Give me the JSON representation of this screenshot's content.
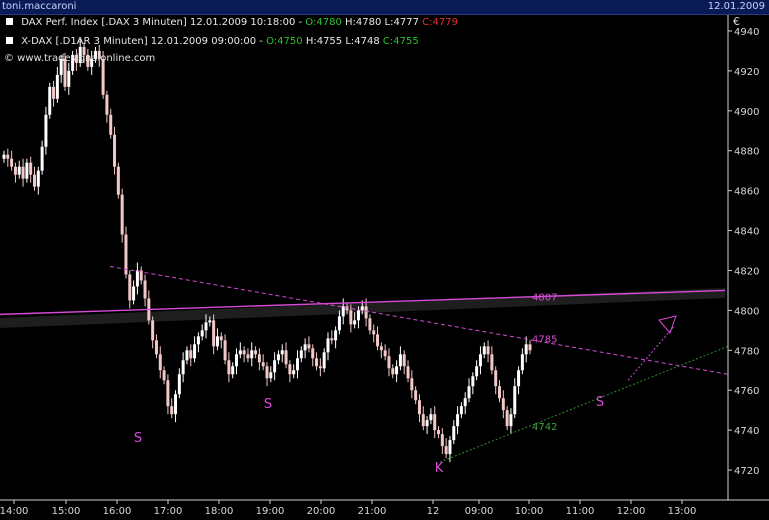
{
  "window": {
    "user": "toni.maccaroni",
    "date": "12.01.2009"
  },
  "legend": [
    {
      "name": "DAX Perf. Index [.DAX  3 Minuten] 12.01.2009 10:18:00 -",
      "open_label": "O:",
      "open": "4780",
      "high": "H:4780",
      "low": "L:4777",
      "close_label": "C:",
      "close": "4779",
      "close_color": "#e53030"
    },
    {
      "name": "X-DAX [.D1AR  3 Minuten] 12.01.2009 09:00:00 -",
      "open_label": "O:",
      "open": "4750",
      "high": "H:4755",
      "low": "L:4748",
      "close_label": "C:",
      "close": "4755",
      "close_color": "#2ec22e"
    }
  ],
  "copyright": "© www.tradesignalonline.com",
  "chart_data": {
    "type": "candlestick",
    "currency": "€",
    "ylim": [
      4705,
      4948
    ],
    "yticks": [
      4940,
      4920,
      4900,
      4880,
      4860,
      4840,
      4820,
      4800,
      4780,
      4760,
      4740,
      4720
    ],
    "xticks": [
      "14:00",
      "15:00",
      "16:00",
      "17:00",
      "18:00",
      "19:00",
      "20:00",
      "21:00",
      "12",
      "09:00",
      "10:00",
      "11:00",
      "12:00",
      "13:00"
    ],
    "closes": [
      4878,
      4876,
      4872,
      4868,
      4872,
      4866,
      4874,
      4868,
      4862,
      4870,
      4882,
      4898,
      4912,
      4906,
      4918,
      4926,
      4912,
      4920,
      4928,
      4924,
      4932,
      4928,
      4922,
      4926,
      4930,
      4926,
      4908,
      4898,
      4888,
      4872,
      4858,
      4838,
      4818,
      4805,
      4812,
      4820,
      4815,
      4806,
      4795,
      4785,
      4778,
      4770,
      4765,
      4752,
      4748,
      4758,
      4768,
      4775,
      4780,
      4776,
      4783,
      4787,
      4790,
      4794,
      4795,
      4782,
      4787,
      4785,
      4775,
      4768,
      4772,
      4778,
      4780,
      4778,
      4776,
      4780,
      4778,
      4774,
      4772,
      4766,
      4769,
      4775,
      4778,
      4780,
      4773,
      4768,
      4770,
      4776,
      4780,
      4783,
      4781,
      4776,
      4772,
      4771,
      4779,
      4786,
      4785,
      4790,
      4797,
      4802,
      4800,
      4793,
      4795,
      4800,
      4802,
      4796,
      4790,
      4788,
      4782,
      4780,
      4777,
      4771,
      4768,
      4772,
      4778,
      4772,
      4766,
      4760,
      4755,
      4748,
      4742,
      4745,
      4748,
      4740,
      4738,
      4732,
      4728,
      4735,
      4742,
      4748,
      4752,
      4756,
      4762,
      4767,
      4772,
      4778,
      4782,
      4778,
      4770,
      4762,
      4756,
      4750,
      4742,
      4748,
      4762,
      4770,
      4778,
      4783,
      4780
    ],
    "annotations": [
      {
        "text": "S",
        "x": "15:45",
        "y": 4737
      },
      {
        "text": "S",
        "x": "19:00",
        "y": 4754
      },
      {
        "text": "K",
        "x": "12",
        "y": 4722
      },
      {
        "text": "S",
        "x": "11:40",
        "y": 4755
      },
      {
        "text": "4807",
        "x": "10:10",
        "y": 4807
      },
      {
        "text": "4785",
        "x": "10:10",
        "y": 4786
      },
      {
        "text": "4742",
        "x": "10:10",
        "y": 4742
      }
    ],
    "colors": {
      "up": "#ffffff",
      "down": "#f2c8c8",
      "resistance": "#d84ad8",
      "trend_dotted": "#d84ad8",
      "support_dotted": "#2f8f2f",
      "axis_text": "#d8d8d8",
      "grid": "#2a2a2a"
    }
  }
}
